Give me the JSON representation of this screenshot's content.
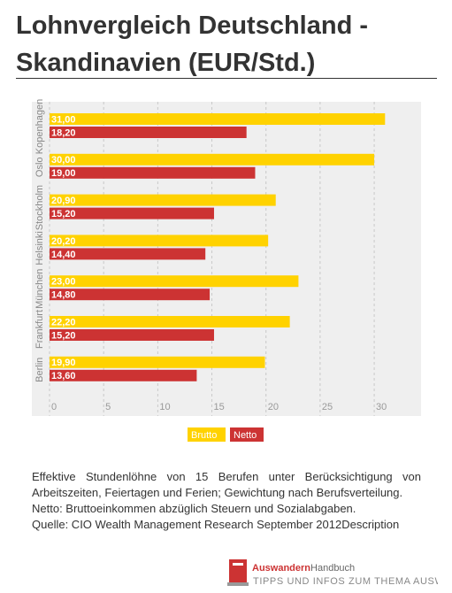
{
  "header": {
    "title": "Lohnvergleich Deutschland - Skandinavien (EUR/Std.)"
  },
  "chart_data": {
    "type": "hbar",
    "categories": [
      "Kopenhagen",
      "Oslo",
      "Stockholm",
      "Helsinki",
      "München",
      "Frankfurt",
      "Berlin"
    ],
    "series": [
      {
        "name": "Brutto",
        "color": "#ffd200",
        "values": [
          31.0,
          30.0,
          20.9,
          20.2,
          23.0,
          22.2,
          19.9
        ],
        "value_labels": [
          "31,00",
          "30,00",
          "20,90",
          "20,20",
          "23,00",
          "22,20",
          "19,90"
        ]
      },
      {
        "name": "Netto",
        "color": "#cc3333",
        "values": [
          18.2,
          19.0,
          15.2,
          14.4,
          14.8,
          15.2,
          13.6
        ],
        "value_labels": [
          "18,20",
          "19,00",
          "15,20",
          "14,40",
          "14,80",
          "15,20",
          "13,60"
        ]
      }
    ],
    "xlim": [
      0,
      34
    ],
    "xticks": [
      0,
      5,
      10,
      15,
      20,
      25,
      30
    ],
    "grid": true
  },
  "description": {
    "lines": [
      "Effektive Stundenlöhne von 15 Berufen unter Berücksichtigung von Arbeitszeiten, Feiertagen und Ferien; Gewichtung nach Berufsverteilung.",
      "Netto: Bruttoeinkommen abzüglich Steuern und Sozialabgaben.",
      "Quelle: CIO Wealth Management Research September 2012Description"
    ]
  },
  "logo": {
    "brand": "Auswandern",
    "brand2": "Handbuch",
    "tagline": "TIPPS UND INFOS ZUM THEMA AUSWANDERN"
  }
}
